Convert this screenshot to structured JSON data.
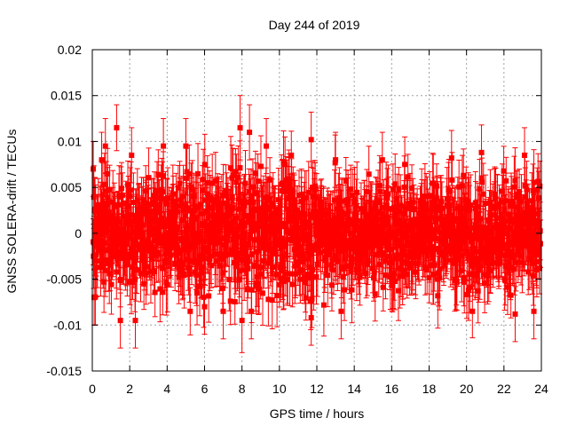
{
  "chart_data": {
    "type": "scatter",
    "title": "Day 244 of 2019",
    "xlabel": "GPS time / hours",
    "ylabel": "GNSS SOLERA-drift / TECUs",
    "xlim": [
      0,
      24
    ],
    "ylim": [
      -0.015,
      0.02
    ],
    "xticks": [
      0,
      2,
      4,
      6,
      8,
      10,
      12,
      14,
      16,
      18,
      20,
      22,
      24
    ],
    "xtick_labels": [
      "0",
      "2",
      "4",
      "6",
      "8",
      "10",
      "12",
      "14",
      "16",
      "18",
      "20",
      "22",
      "24"
    ],
    "yticks": [
      -0.015,
      -0.01,
      -0.005,
      0,
      0.005,
      0.01,
      0.015,
      0.02
    ],
    "ytick_labels": [
      "-0.015",
      "-0.01",
      "-0.005",
      "0",
      "0.005",
      "0.01",
      "0.015",
      "0.02"
    ],
    "grid": true,
    "series": [
      {
        "name": "SOLERA drift",
        "color": "#ff0000",
        "marker": "square",
        "error_bars": true,
        "description": "dense sampling, values mostly within -0.008 to 0.008, error bars about ±0.003",
        "points": [
          {
            "x": 0.05,
            "y": 0.007,
            "err": 0.003
          },
          {
            "x": 0.1,
            "y": -0.007,
            "err": 0.003
          },
          {
            "x": 0.5,
            "y": 0.008,
            "err": 0.003
          },
          {
            "x": 0.7,
            "y": 0.0095,
            "err": 0.003
          },
          {
            "x": 1.3,
            "y": 0.0115,
            "err": 0.0025
          },
          {
            "x": 1.5,
            "y": -0.0095,
            "err": 0.003
          },
          {
            "x": 2.1,
            "y": 0.0085,
            "err": 0.003
          },
          {
            "x": 2.3,
            "y": -0.0095,
            "err": 0.003
          },
          {
            "x": 3.8,
            "y": 0.0095,
            "err": 0.003
          },
          {
            "x": 5.0,
            "y": 0.0095,
            "err": 0.003
          },
          {
            "x": 6.0,
            "y": -0.008,
            "err": 0.003
          },
          {
            "x": 7.0,
            "y": -0.0085,
            "err": 0.003
          },
          {
            "x": 7.9,
            "y": 0.0115,
            "err": 0.0035
          },
          {
            "x": 8.0,
            "y": -0.0095,
            "err": 0.0035
          },
          {
            "x": 8.4,
            "y": 0.011,
            "err": 0.003
          },
          {
            "x": 8.5,
            "y": -0.0085,
            "err": 0.003
          },
          {
            "x": 9.3,
            "y": 0.0095,
            "err": 0.003
          },
          {
            "x": 10.3,
            "y": 0.0075,
            "err": 0.003
          },
          {
            "x": 11.7,
            "y": 0.0102,
            "err": 0.003
          },
          {
            "x": 11.7,
            "y": -0.0092,
            "err": 0.003
          },
          {
            "x": 13.0,
            "y": 0.008,
            "err": 0.003
          },
          {
            "x": 13.3,
            "y": -0.0085,
            "err": 0.003
          },
          {
            "x": 15.5,
            "y": 0.008,
            "err": 0.003
          },
          {
            "x": 16.7,
            "y": 0.0075,
            "err": 0.003
          },
          {
            "x": 19.2,
            "y": 0.0082,
            "err": 0.003
          },
          {
            "x": 20.8,
            "y": 0.0088,
            "err": 0.003
          },
          {
            "x": 22.6,
            "y": -0.0088,
            "err": 0.003
          },
          {
            "x": 23.1,
            "y": 0.0085,
            "err": 0.003
          },
          {
            "x": 23.6,
            "y": -0.0085,
            "err": 0.003
          }
        ]
      }
    ]
  }
}
